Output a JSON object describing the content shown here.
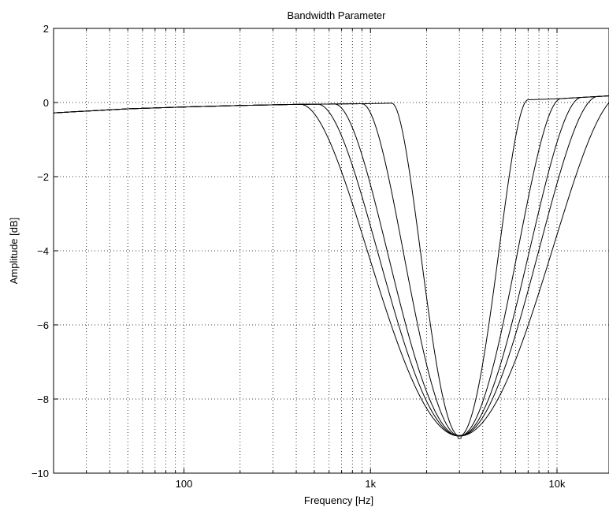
{
  "chart_data": {
    "type": "line",
    "title": "Bandwidth Parameter",
    "xlabel": "Frequency [Hz]",
    "ylabel": "Amplitude [dB]",
    "x_scale": "log",
    "xlim": [
      20,
      19000
    ],
    "ylim": [
      -10,
      2
    ],
    "x_ticks": [
      {
        "value": 100,
        "label": "100"
      },
      {
        "value": 1000,
        "label": "1k"
      },
      {
        "value": 10000,
        "label": "10k"
      }
    ],
    "y_ticks": [
      {
        "value": 2,
        "label": "2"
      },
      {
        "value": 0,
        "label": "0"
      },
      {
        "value": -2,
        "label": "−2"
      },
      {
        "value": -4,
        "label": "−4"
      },
      {
        "value": -6,
        "label": "−6"
      },
      {
        "value": -8,
        "label": "−8"
      },
      {
        "value": -10,
        "label": "−10"
      }
    ],
    "grid": true,
    "legend": "none",
    "baseline": [
      [
        20,
        -0.28
      ],
      [
        50,
        -0.17
      ],
      [
        100,
        -0.12
      ],
      [
        200,
        -0.08
      ],
      [
        400,
        -0.05
      ],
      [
        1000,
        -0.03
      ],
      [
        2000,
        0.0
      ],
      [
        5000,
        0.05
      ],
      [
        10000,
        0.1
      ],
      [
        19000,
        0.18
      ]
    ],
    "dip": {
      "center_freq": 3000,
      "depth_db": -9.0
    },
    "series": [
      {
        "low_edge_hz": 1300,
        "high_edge_hz": 7000
      },
      {
        "low_edge_hz": 900,
        "high_edge_hz": 10500
      },
      {
        "low_edge_hz": 640,
        "high_edge_hz": 13500
      },
      {
        "low_edge_hz": 520,
        "high_edge_hz": 16500
      },
      {
        "low_edge_hz": 420,
        "high_edge_hz": 22000
      }
    ]
  }
}
